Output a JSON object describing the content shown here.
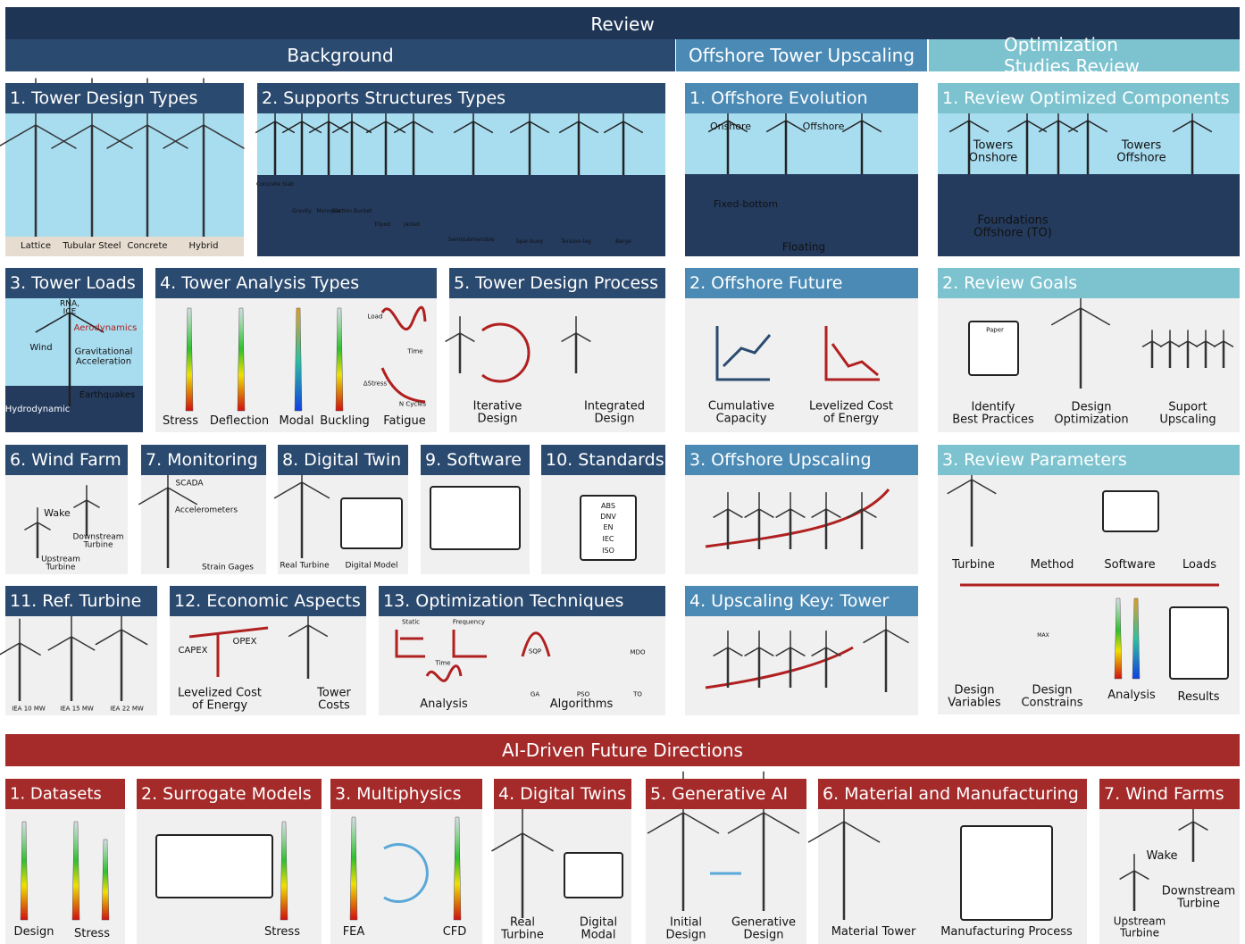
{
  "title": "Review",
  "sections": [
    {
      "title": "Background",
      "panels": [
        {
          "title": "1. Tower Design Types",
          "labels": [
            "Lattice",
            "Tubular Steel",
            "Concrete",
            "Hybrid"
          ]
        },
        {
          "title": "2. Supports Structures Types",
          "labels": [
            "Concrete Slab",
            "Gravity",
            "Monopile",
            "Suction Bucket",
            "Tripod",
            "Jacket",
            "Semisubmersible",
            "Spar-buoy",
            "Tension-leg",
            "Barge"
          ]
        },
        {
          "title": "3. Tower Loads",
          "labels": [
            "RNA,\nICE",
            "Aerodynamics",
            "Wind",
            "Gravitational\nAcceleration",
            "Earthquakes",
            "Hydrodynamic"
          ]
        },
        {
          "title": "4. Tower Analysis Types",
          "labels": [
            "Stress",
            "Deflection",
            "Modal",
            "Buckling",
            "Fatigue",
            "Load",
            "Time",
            "ΔStress",
            "N Cycles"
          ]
        },
        {
          "title": "5. Tower Design Process",
          "labels": [
            "Iterative\nDesign",
            "Integrated\nDesign"
          ]
        },
        {
          "title": "6. Wind Farm",
          "labels": [
            "Wake",
            "Downstream\nTurbine",
            "Upstream\nTurbine"
          ]
        },
        {
          "title": "7. Monitoring",
          "labels": [
            "SCADA",
            "Accelerometers",
            "Strain Gages"
          ]
        },
        {
          "title": "8. Digital Twin",
          "labels": [
            "Real Turbine",
            "Digital Model"
          ]
        },
        {
          "title": "9. Software",
          "labels": []
        },
        {
          "title": "10. Standards",
          "labels": [
            "ABS",
            "DNV",
            "EN",
            "IEC",
            "ISO"
          ]
        },
        {
          "title": "11. Ref. Turbine",
          "labels": [
            "IEA 10 MW",
            "IEA 15 MW",
            "IEA 22 MW"
          ]
        },
        {
          "title": "12. Economic Aspects",
          "labels": [
            "CAPEX",
            "OPEX",
            "Levelized Cost\nof Energy",
            "Tower\nCosts"
          ]
        },
        {
          "title": "13. Optimization Techniques",
          "labels": [
            "Static",
            "Frequency",
            "Time",
            "Analysis",
            "SQP",
            "MDO",
            "GA",
            "PSO",
            "TO",
            "Algorithms"
          ]
        }
      ]
    },
    {
      "title": "Offshore Tower Upscaling",
      "panels": [
        {
          "title": "1. Offshore Evolution",
          "labels": [
            "Onshore",
            "Offshore",
            "Fixed-bottom",
            "Floating"
          ]
        },
        {
          "title": "2. Offshore Future",
          "labels": [
            "Cumulative\nCapacity",
            "Levelized Cost\nof Energy"
          ]
        },
        {
          "title": "3. Offshore Upscaling",
          "labels": []
        },
        {
          "title": "4. Upscaling Key: Tower",
          "labels": []
        }
      ]
    },
    {
      "title": "Optimization Studies Review",
      "panels": [
        {
          "title": "1. Review Optimized Components",
          "labels": [
            "Towers\nOnshore",
            "Towers\nOffshore",
            "Foundations\nOffshore (TO)"
          ]
        },
        {
          "title": "2. Review Goals",
          "labels": [
            "Paper",
            "Identify\nBest Practices",
            "Design\nOptimization",
            "Suport\nUpscaling"
          ]
        },
        {
          "title": "3. Review Parameters",
          "labels": [
            "Turbine",
            "Method",
            "Software",
            "Loads",
            "MAX",
            "Design\nVariables",
            "Design\nConstrains",
            "Analysis",
            "Results"
          ]
        }
      ]
    },
    {
      "title": "AI-Driven Future Directions",
      "panels": [
        {
          "title": "1. Datasets",
          "labels": [
            "Design",
            "Stress"
          ]
        },
        {
          "title": "2. Surrogate Models",
          "labels": [
            "Stress"
          ]
        },
        {
          "title": "3. Multiphysics",
          "labels": [
            "FEA",
            "CFD"
          ]
        },
        {
          "title": "4. Digital Twins",
          "labels": [
            "Real\nTurbine",
            "Digital\nModal"
          ]
        },
        {
          "title": "5. Generative AI",
          "labels": [
            "Initial\nDesign",
            "Generative\nDesign"
          ]
        },
        {
          "title": "6. Material and Manufacturing",
          "labels": [
            "Material Tower",
            "Manufacturing Process"
          ]
        },
        {
          "title": "7. Wind Farms",
          "labels": [
            "Wake",
            "Downstream\nTurbine",
            "Upstream\nTurbine"
          ]
        }
      ]
    }
  ]
}
